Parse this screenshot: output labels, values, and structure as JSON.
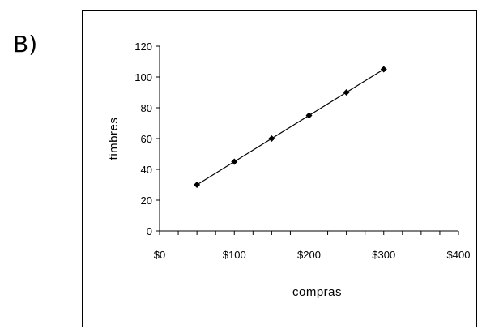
{
  "option_label": "B)",
  "chart_data": {
    "type": "line",
    "title": "",
    "xlabel": "compras",
    "ylabel": "timbres",
    "x": [
      50,
      100,
      150,
      200,
      250,
      300
    ],
    "series": [
      {
        "values": [
          30,
          45,
          60,
          75,
          90,
          105
        ]
      }
    ],
    "xlim": [
      0,
      400
    ],
    "ylim": [
      0,
      120
    ],
    "x_ticks": [
      0,
      100,
      200,
      300,
      400
    ],
    "x_tick_labels": [
      "$0",
      "$100",
      "$200",
      "$300",
      "$400"
    ],
    "y_ticks": [
      0,
      20,
      40,
      60,
      80,
      100,
      120
    ],
    "y_tick_labels": [
      "0",
      "20",
      "40",
      "60",
      "80",
      "100",
      "120"
    ],
    "marker": "diamond",
    "grid": false,
    "legend": "none",
    "line_color": "#000000"
  }
}
